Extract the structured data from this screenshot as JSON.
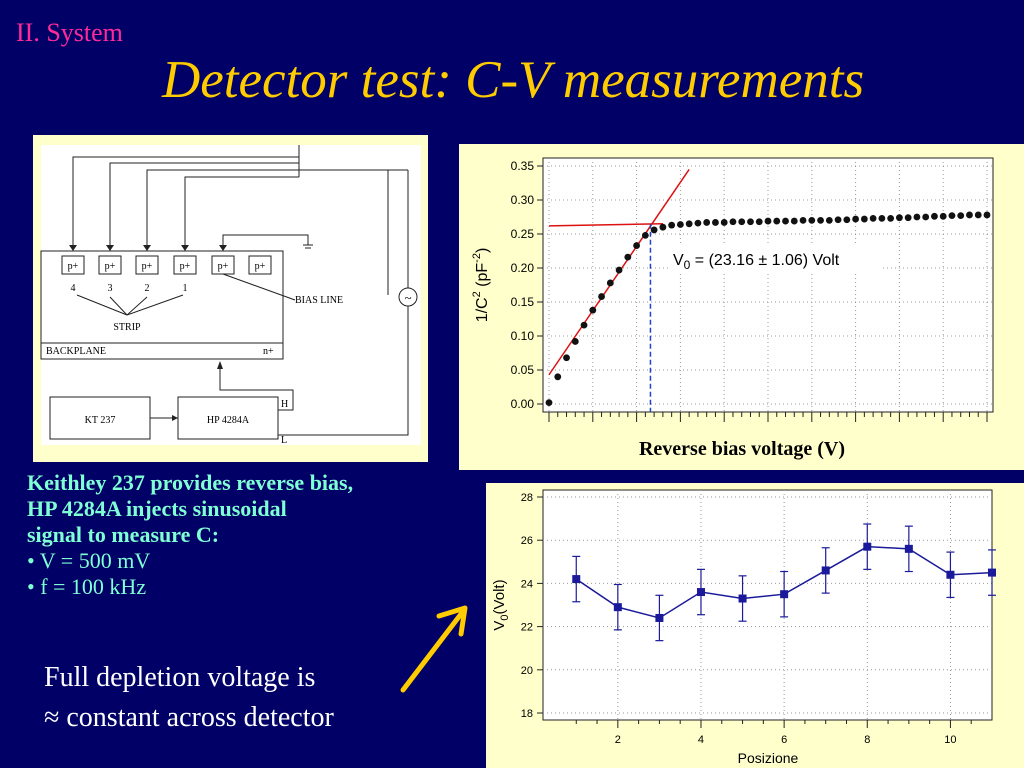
{
  "header": {
    "section": "II. System",
    "title": "Detector test: C-V measurements"
  },
  "schematic": {
    "pad_label": "p+",
    "strip_numbers": [
      "4",
      "3",
      "2",
      "1"
    ],
    "strip_label": "STRIP",
    "bias_line_label": "BIAS LINE",
    "backplane_label": "BACKPLANE",
    "nplus_label": "n+",
    "kt_label": "KT 237",
    "hp_label": "HP 4284A",
    "h_label": "H",
    "l_label": "L",
    "ac_source_glyph": "~"
  },
  "description": {
    "line1": "Keithley 237 provides reverse bias,",
    "line2": "HP 4284A injects sinusoidal",
    "line3": "signal to measure C:",
    "bullet1": "• V = 500 mV",
    "bullet2": "• f = 100 kHz"
  },
  "conclusion": {
    "line1": "Full depletion voltage is",
    "line2": "≈ constant across detector"
  },
  "colors": {
    "background": "#000066",
    "title": "#ffcc00",
    "section": "#ff2a9a",
    "description": "#7fffd4",
    "panel_bg": "#ffffcc",
    "fit_line": "#dd1111",
    "v0_line": "#2244cc",
    "series_blue": "#1a1a9a",
    "arrow": "#ffcc00"
  },
  "chart_data": [
    {
      "type": "scatter",
      "ylabel_base": "1/C",
      "ylabel_sup1": "2",
      "ylabel_mid": " (pF",
      "ylabel_sup2": "-2",
      "ylabel_end": ")",
      "xlabel": "Reverse bias voltage (V)",
      "annotation": {
        "prefix": "V",
        "sub": "0",
        "text": " = (23.16 ± 1.06) Volt"
      },
      "yticks": [
        "0.00",
        "0.05",
        "0.10",
        "0.15",
        "0.20",
        "0.25",
        "0.30",
        "0.35"
      ],
      "ylim": [
        0,
        0.35
      ],
      "xlim": [
        0,
        100
      ],
      "grid": true,
      "v0": 23.16,
      "x": [
        0,
        2,
        4,
        6,
        8,
        10,
        12,
        14,
        16,
        18,
        20,
        22,
        24,
        26,
        28,
        30,
        32,
        34,
        36,
        38,
        40,
        42,
        44,
        46,
        48,
        50,
        52,
        54,
        56,
        58,
        60,
        62,
        64,
        66,
        68,
        70,
        72,
        74,
        76,
        78,
        80,
        82,
        84,
        86,
        88,
        90,
        92,
        94,
        96,
        98,
        100
      ],
      "y": [
        0.002,
        0.04,
        0.068,
        0.092,
        0.116,
        0.138,
        0.158,
        0.178,
        0.197,
        0.216,
        0.233,
        0.248,
        0.256,
        0.26,
        0.263,
        0.264,
        0.265,
        0.266,
        0.267,
        0.267,
        0.267,
        0.268,
        0.268,
        0.268,
        0.268,
        0.269,
        0.269,
        0.269,
        0.269,
        0.27,
        0.27,
        0.27,
        0.27,
        0.271,
        0.271,
        0.272,
        0.272,
        0.273,
        0.273,
        0.273,
        0.274,
        0.274,
        0.275,
        0.275,
        0.276,
        0.276,
        0.277,
        0.277,
        0.278,
        0.278,
        0.278
      ],
      "fit_lines": [
        {
          "x": [
            0,
            32
          ],
          "y": [
            0.043,
            0.345
          ]
        },
        {
          "x": [
            0,
            26
          ],
          "y": [
            0.262,
            0.265
          ]
        }
      ]
    },
    {
      "type": "line",
      "ylabel_base": "V",
      "ylabel_sub": "0",
      "ylabel_end": "(Volt)",
      "xlabel": "Posizione",
      "yticks": [
        "18",
        "20",
        "22",
        "24",
        "26",
        "28"
      ],
      "xticks": [
        "2",
        "4",
        "6",
        "8",
        "10"
      ],
      "xlim": [
        0.2,
        11
      ],
      "ylim": [
        18,
        28
      ],
      "grid": true,
      "x": [
        1,
        2,
        3,
        4,
        5,
        6,
        7,
        8,
        9,
        10,
        11
      ],
      "y": [
        24.2,
        22.9,
        22.4,
        23.6,
        23.3,
        23.5,
        24.6,
        25.7,
        25.6,
        24.4,
        24.5
      ],
      "yerr": [
        1.05,
        1.05,
        1.05,
        1.05,
        1.05,
        1.05,
        1.05,
        1.05,
        1.05,
        1.05,
        1.05
      ]
    }
  ]
}
